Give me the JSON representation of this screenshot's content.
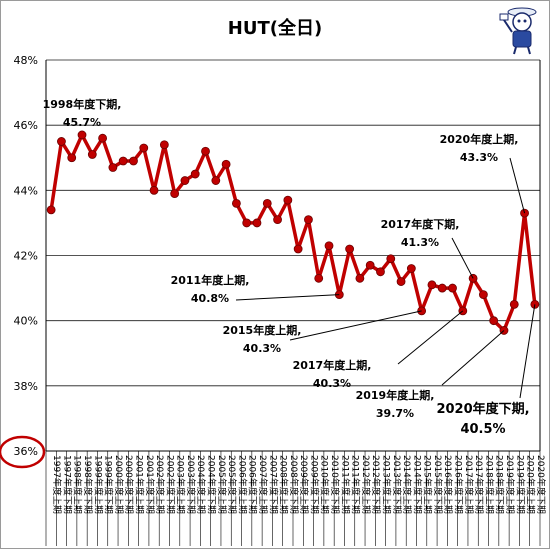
{
  "chart_data": {
    "type": "line",
    "title": "HUT(全日)",
    "ylim": [
      36,
      48
    ],
    "yticks": [
      "36%",
      "38%",
      "40%",
      "42%",
      "44%",
      "46%",
      "48%"
    ],
    "y_tick_values": [
      36,
      38,
      40,
      42,
      44,
      46,
      48
    ],
    "grid": true,
    "line_color": "#c00000",
    "marker_color": "#c00000",
    "highlight_color": "#c00000",
    "highlight_tick": "36%",
    "x": [
      "1997年度上期",
      "1997年度下期",
      "1998年度上期",
      "1998年度下期",
      "1999年度上期",
      "1999年度下期",
      "2000年度上期",
      "2000年度下期",
      "2001年度上期",
      "2001年度下期",
      "2002年度上期",
      "2002年度下期",
      "2003年度上期",
      "2003年度下期",
      "2004年度上期",
      "2004年度下期",
      "2005年度上期",
      "2005年度下期",
      "2006年度上期",
      "2006年度下期",
      "2007年度上期",
      "2007年度下期",
      "2008年度上期",
      "2008年度下期",
      "2009年度上期",
      "2009年度下期",
      "2010年度上期",
      "2010年度下期",
      "2011年度上期",
      "2011年度下期",
      "2012年度上期",
      "2012年度下期",
      "2013年度上期",
      "2013年度下期",
      "2014年度上期",
      "2014年度下期",
      "2015年度上期",
      "2015年度下期",
      "2016年度上期",
      "2016年度下期",
      "2017年度上期",
      "2017年度下期",
      "2018年度上期",
      "2018年度下期",
      "2019年度上期",
      "2019年度下期",
      "2020年度上期",
      "2020年度下期"
    ],
    "values": [
      43.4,
      45.5,
      45.0,
      45.7,
      45.1,
      45.6,
      44.7,
      44.9,
      44.9,
      45.3,
      44.0,
      45.4,
      43.9,
      44.3,
      44.5,
      45.2,
      44.3,
      44.8,
      43.6,
      43.0,
      43.0,
      43.6,
      43.1,
      43.7,
      42.2,
      43.1,
      41.3,
      42.3,
      40.8,
      42.2,
      41.3,
      41.7,
      41.5,
      41.9,
      41.2,
      41.6,
      40.3,
      41.1,
      41.0,
      41.0,
      40.3,
      41.3,
      40.8,
      40.0,
      39.7,
      40.5,
      43.3,
      40.5
    ],
    "annotations": [
      {
        "index": 3,
        "line1": "1998年度下期,",
        "line2": "45.7%",
        "size": "normal"
      },
      {
        "index": 28,
        "line1": "2011年度上期,",
        "line2": "40.8%",
        "size": "normal"
      },
      {
        "index": 36,
        "line1": "2015年度上期,",
        "line2": "40.3%",
        "size": "normal"
      },
      {
        "index": 40,
        "line1": "2017年度上期,",
        "line2": "40.3%",
        "size": "normal"
      },
      {
        "index": 41,
        "line1": "2017年度下期,",
        "line2": "41.3%",
        "size": "normal"
      },
      {
        "index": 44,
        "line1": "2019年度上期,",
        "line2": "39.7%",
        "size": "normal"
      },
      {
        "index": 46,
        "line1": "2020年度上期,",
        "line2": "43.3%",
        "size": "normal"
      },
      {
        "index": 47,
        "line1": "2020年度下期,",
        "line2": "40.5%",
        "size": "big"
      }
    ]
  },
  "icon": {
    "name": "mascot-figure-icon"
  }
}
